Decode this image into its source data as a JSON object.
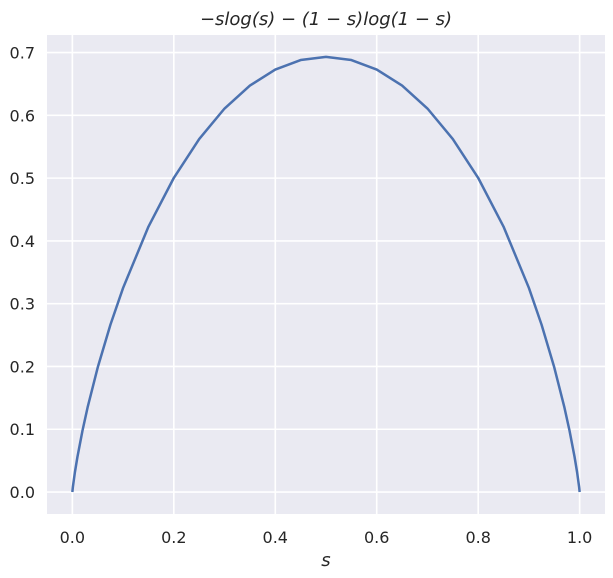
{
  "chart_data": {
    "type": "line",
    "title": "−slog(s) − (1 − s)log(1 − s)",
    "xlabel": "s",
    "ylabel": "",
    "xlim": [
      -0.05,
      1.05
    ],
    "ylim": [
      -0.035,
      0.728
    ],
    "xticks": [
      0.0,
      0.2,
      0.4,
      0.6,
      0.8,
      1.0
    ],
    "xtick_labels": [
      "0.0",
      "0.2",
      "0.4",
      "0.6",
      "0.8",
      "1.0"
    ],
    "yticks": [
      0.0,
      0.1,
      0.2,
      0.3,
      0.4,
      0.5,
      0.6,
      0.7
    ],
    "ytick_labels": [
      "0.0",
      "0.1",
      "0.2",
      "0.3",
      "0.4",
      "0.5",
      "0.6",
      "0.7"
    ],
    "grid": true,
    "background_color": "#eaeaf2",
    "grid_color": "#ffffff",
    "series": [
      {
        "color": "#4c72b0",
        "x": [
          0.0,
          0.001,
          0.005,
          0.01,
          0.02,
          0.03,
          0.05,
          0.075,
          0.1,
          0.15,
          0.2,
          0.25,
          0.3,
          0.35,
          0.4,
          0.45,
          0.5,
          0.55,
          0.6,
          0.65,
          0.7,
          0.75,
          0.8,
          0.85,
          0.9,
          0.925,
          0.95,
          0.97,
          0.98,
          0.99,
          0.995,
          0.999,
          1.0
        ],
        "y": [
          0.0,
          0.0079,
          0.0315,
          0.056,
          0.098,
          0.1347,
          0.1985,
          0.2665,
          0.3251,
          0.4227,
          0.5004,
          0.5623,
          0.6109,
          0.6474,
          0.673,
          0.6881,
          0.6931,
          0.6881,
          0.673,
          0.6474,
          0.6109,
          0.5623,
          0.5004,
          0.4227,
          0.3251,
          0.2665,
          0.1985,
          0.1347,
          0.098,
          0.056,
          0.0315,
          0.0079,
          0.0
        ]
      }
    ]
  }
}
